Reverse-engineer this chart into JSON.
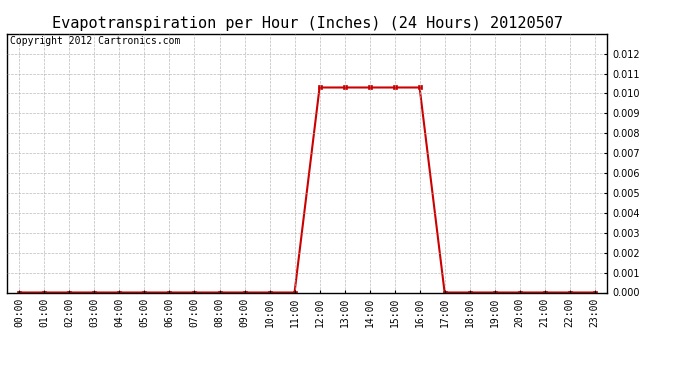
{
  "title": "Evapotranspiration per Hour (Inches) (24 Hours) 20120507",
  "copyright_text": "Copyright 2012 Cartronics.com",
  "hours": [
    0,
    1,
    2,
    3,
    4,
    5,
    6,
    7,
    8,
    9,
    10,
    11,
    12,
    13,
    14,
    15,
    16,
    17,
    18,
    19,
    20,
    21,
    22,
    23
  ],
  "values": [
    0.0,
    0.0,
    0.0,
    0.0,
    0.0,
    0.0,
    0.0,
    0.0,
    0.0,
    0.0,
    0.0,
    0.0,
    0.0103,
    0.0103,
    0.0103,
    0.0103,
    0.0103,
    0.0,
    0.0,
    0.0,
    0.0,
    0.0,
    0.0,
    0.0
  ],
  "ylim": [
    0,
    0.013
  ],
  "yticks": [
    0.0,
    0.001,
    0.002,
    0.003,
    0.004,
    0.005,
    0.006,
    0.007,
    0.008,
    0.009,
    0.01,
    0.011,
    0.012
  ],
  "line_color": "#cc0000",
  "marker": "s",
  "marker_size": 2.5,
  "background_color": "#ffffff",
  "grid_color": "#aaaaaa",
  "title_fontsize": 11,
  "tick_label_fontsize": 7,
  "copyright_fontsize": 7
}
